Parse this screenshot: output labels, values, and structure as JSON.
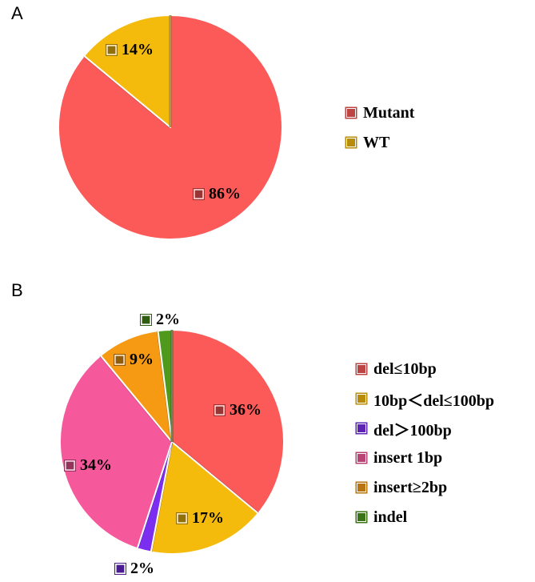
{
  "chart_data": [
    {
      "panel": "A",
      "type": "pie",
      "slices": [
        {
          "name": "Mutant",
          "value": 86,
          "label": "86%",
          "color": "#fb5a58"
        },
        {
          "name": "WT",
          "value": 14,
          "label": "14%",
          "color": "#f5bb0c"
        }
      ],
      "legend": "right"
    },
    {
      "panel": "B",
      "type": "pie",
      "slices": [
        {
          "name": "del≤10bp",
          "value": 36,
          "label": "36%",
          "color": "#fb5a58"
        },
        {
          "name": "10bp＜del≤100bp",
          "value": 17,
          "label": "17%",
          "color": "#f5bb0c"
        },
        {
          "name": "del＞100bp",
          "value": 2,
          "label": "2%",
          "color": "#7b2ef0"
        },
        {
          "name": "insert 1bp",
          "value": 34,
          "label": "34%",
          "color": "#f5599b"
        },
        {
          "name": "insert≥2bp",
          "value": 9,
          "label": "9%",
          "color": "#f59a12"
        },
        {
          "name": "indel",
          "value": 2,
          "label": "2%",
          "color": "#4f9a1d"
        }
      ],
      "legend": "right"
    }
  ]
}
